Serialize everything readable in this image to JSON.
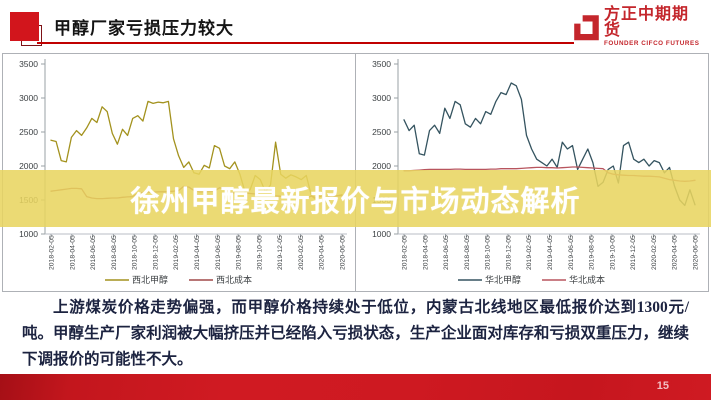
{
  "header": {
    "title": "甲醇厂家亏损压力较大",
    "accent_color": "#c00000",
    "logo": {
      "brand_name": "方正中期期货",
      "brand_subtitle": "FOUNDER CIFCO FUTURES",
      "brand_color": "#c4262c"
    }
  },
  "watermark": {
    "text": "徐州甲醇最新报价与市场动态解析",
    "band_color": "#e8d55f"
  },
  "body_text": {
    "paragraph": "上游煤炭价格走势偏强，而甲醇价格持续处于低位，内蒙古北线地区最低报价达到1300元/吨。甲醇生产厂家利润被大幅挤压并已经陷入亏损状态，生产企业面对库存和亏损双重压力，继续下调报价的可能性不大。"
  },
  "footer": {
    "page_number": "15",
    "bar_color": "#cc1620"
  },
  "chart_data": [
    {
      "type": "line",
      "title": "",
      "xlabel": "",
      "ylabel": "",
      "ylim": [
        1000,
        3500
      ],
      "yticks": [
        1000,
        1500,
        2000,
        2500,
        3000,
        3500
      ],
      "grid": false,
      "legend_position": "bottom",
      "x_labels": [
        "2018-02-05",
        "2018-04-05",
        "2018-06-05",
        "2018-08-05",
        "2018-10-05",
        "2018-12-05",
        "2019-02-05",
        "2019-04-05",
        "2019-06-05",
        "2019-08-05",
        "2019-10-05",
        "2019-12-05",
        "2020-02-05",
        "2020-04-05",
        "2020-06-05"
      ],
      "series": [
        {
          "name": "西北甲醇",
          "color": "#a3921e",
          "values": [
            2380,
            2360,
            2080,
            2060,
            2420,
            2520,
            2450,
            2560,
            2700,
            2640,
            2870,
            2800,
            2480,
            2320,
            2540,
            2450,
            2700,
            2740,
            2660,
            2950,
            2920,
            2940,
            2930,
            2950,
            2400,
            2150,
            1980,
            2060,
            1900,
            1880,
            2010,
            1970,
            2300,
            2260,
            2000,
            1960,
            2060,
            1880,
            1620,
            1650,
            1860,
            1800,
            1620,
            1720,
            2350,
            1880,
            1820,
            1870,
            1840,
            1800,
            1860,
            1560,
            1500,
            1620,
            1450,
            1540,
            1560,
            1580
          ]
        },
        {
          "name": "西北成本",
          "color": "#a04848",
          "values": [
            1630,
            1640,
            1650,
            1660,
            1670,
            1670,
            1665,
            1550,
            1530,
            1520,
            1520,
            1525,
            1530,
            1530,
            1540,
            1545,
            1550,
            1600,
            1610,
            1615,
            1615,
            1620,
            1620,
            1625,
            1630,
            1640,
            1700,
            1690,
            1640,
            1620,
            1620,
            1625,
            1630,
            1680,
            1665,
            1610,
            1600,
            1600,
            1600,
            1595,
            1590,
            1580,
            1570,
            1560,
            1560,
            1555,
            1550,
            1555,
            1560,
            1545,
            1520,
            1560,
            1530,
            1560,
            1540,
            1555,
            1560,
            1565
          ]
        }
      ]
    },
    {
      "type": "line",
      "title": "",
      "xlabel": "",
      "ylabel": "",
      "ylim": [
        1000,
        3500
      ],
      "yticks": [
        1000,
        1500,
        2000,
        2500,
        3000,
        3500
      ],
      "grid": false,
      "legend_position": "bottom",
      "x_labels": [
        "2018-02-05",
        "2018-04-05",
        "2018-06-05",
        "2018-08-05",
        "2018-10-05",
        "2018-12-05",
        "2019-02-05",
        "2019-04-05",
        "2019-06-05",
        "2019-08-05",
        "2019-10-05",
        "2019-12-05",
        "2020-02-05",
        "2020-04-05",
        "2020-06-05"
      ],
      "series": [
        {
          "name": "华北甲醇",
          "color": "#355460",
          "values": [
            2680,
            2520,
            2600,
            2180,
            2160,
            2520,
            2600,
            2480,
            2850,
            2700,
            2950,
            2900,
            2620,
            2570,
            2700,
            2620,
            2800,
            2760,
            2950,
            3080,
            3050,
            3220,
            3180,
            2980,
            2450,
            2250,
            2100,
            2050,
            2000,
            2100,
            1980,
            2350,
            2250,
            2300,
            1950,
            2100,
            2250,
            2050,
            1700,
            1760,
            1950,
            2000,
            1750,
            2300,
            2350,
            2100,
            2050,
            2100,
            2000,
            2080,
            2050,
            1900,
            1980,
            1700,
            1500,
            1420,
            1650,
            1430
          ]
        },
        {
          "name": "华北成本",
          "color": "#b8555e",
          "values": [
            1930,
            1930,
            1935,
            1940,
            1945,
            1950,
            1950,
            1950,
            1950,
            1950,
            1955,
            1955,
            1950,
            1950,
            1950,
            1950,
            1950,
            1955,
            1955,
            1960,
            1960,
            1960,
            1960,
            1965,
            1970,
            1975,
            1980,
            1980,
            1975,
            1975,
            1970,
            1975,
            1980,
            1985,
            1985,
            1980,
            1975,
            1970,
            1965,
            1960,
            1900,
            1880,
            1870,
            1865,
            1860,
            1860,
            1855,
            1850,
            1850,
            1845,
            1840,
            1820,
            1800,
            1790,
            1780,
            1775,
            1780,
            1790
          ]
        }
      ]
    }
  ]
}
